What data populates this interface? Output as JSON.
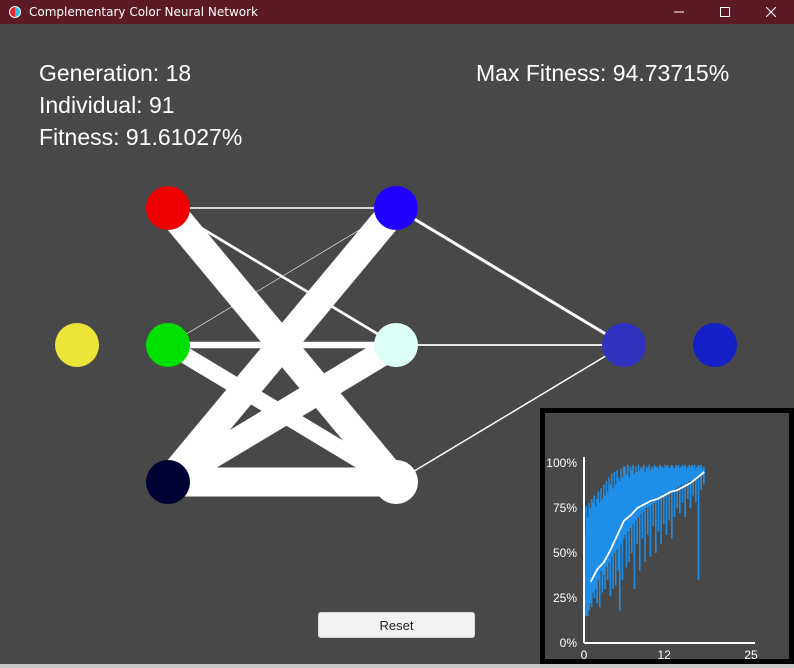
{
  "window": {
    "title": "Complementary Color Neural Network",
    "icon": "color-circle-icon",
    "controls": [
      "minimize-icon",
      "maximize-icon",
      "close-icon"
    ],
    "title_bar_color": "#5c1a25"
  },
  "stats": {
    "generation_label": "Generation: ",
    "generation": "18",
    "individual_label": "Individual: ",
    "individual": "91",
    "fitness_label": "Fitness: ",
    "fitness": "91.61027%",
    "max_fitness_label": "Max Fitness: ",
    "max_fitness": "94.73715%"
  },
  "network": {
    "input_color": "#ede43a",
    "input_nodes": [
      "#ee0000",
      "#00e000",
      "#000033"
    ],
    "hidden_nodes": [
      "#2200ff",
      "#ddfff8",
      "#ffffff"
    ],
    "output_node": "#3232c0",
    "result_color": "#1520c8",
    "input_hidden_weights": [
      [
        0.05,
        0.09,
        0.95
      ],
      [
        0.01,
        0.22,
        0.55
      ],
      [
        0.95,
        0.85,
        0.97
      ]
    ],
    "hidden_output_weights": [
      0.1,
      0.06,
      0.05
    ]
  },
  "reset_button": {
    "label": "Reset"
  },
  "chart_data": {
    "type": "line",
    "title": "",
    "xlabel": "",
    "ylabel": "",
    "x_ticks": [
      "0",
      "12",
      "25"
    ],
    "y_ticks": [
      "0%",
      "25%",
      "50%",
      "75%",
      "100%"
    ],
    "xlim": [
      0,
      25
    ],
    "ylim": [
      0,
      100
    ],
    "grid": false,
    "series": [
      {
        "type": "bar-range",
        "color": "#1e8fe8",
        "x": [
          0.0,
          0.2,
          0.4,
          0.6,
          0.8,
          1.0,
          1.2,
          1.4,
          1.6,
          1.8,
          2.0,
          2.2,
          2.4,
          2.6,
          2.8,
          3.0,
          3.2,
          3.4,
          3.6,
          3.8,
          4.0,
          4.2,
          4.4,
          4.6,
          4.8,
          5.0,
          5.2,
          5.4,
          5.6,
          5.8,
          6.0,
          6.2,
          6.4,
          6.6,
          6.8,
          7.0,
          7.2,
          7.4,
          7.6,
          7.8,
          8.0,
          8.2,
          8.4,
          8.6,
          8.8,
          9.0,
          9.2,
          9.4,
          9.6,
          9.8,
          10.0,
          10.2,
          10.4,
          10.6,
          10.8,
          11.0,
          11.2,
          11.4,
          11.6,
          11.8,
          12.0,
          12.2,
          12.4,
          12.6,
          12.8,
          13.0,
          13.2,
          13.4,
          13.6,
          13.8,
          14.0,
          14.2,
          14.4,
          14.6,
          14.8,
          15.0,
          15.2,
          15.4,
          15.6,
          15.8,
          16.0,
          16.2,
          16.4,
          16.6,
          16.8,
          17.0,
          17.2,
          17.4,
          17.6,
          17.8
        ],
        "low": [
          15,
          15,
          15,
          18,
          22,
          20,
          28,
          25,
          30,
          22,
          35,
          20,
          40,
          28,
          38,
          30,
          42,
          35,
          45,
          26,
          48,
          30,
          50,
          32,
          52,
          40,
          18,
          55,
          35,
          58,
          60,
          42,
          62,
          45,
          64,
          50,
          66,
          30,
          68,
          55,
          70,
          40,
          72,
          58,
          73,
          45,
          75,
          60,
          76,
          48,
          77,
          65,
          78,
          50,
          79,
          62,
          80,
          55,
          81,
          66,
          82,
          60,
          83,
          68,
          84,
          58,
          85,
          70,
          86,
          75,
          87,
          72,
          88,
          78,
          88,
          70,
          89,
          80,
          90,
          75,
          90,
          82,
          91,
          78,
          92,
          35,
          92,
          85,
          93,
          88
        ],
        "high": [
          60,
          76,
          70,
          78,
          75,
          80,
          78,
          82,
          76,
          80,
          84,
          78,
          86,
          80,
          88,
          82,
          90,
          84,
          92,
          88,
          94,
          86,
          95,
          88,
          96,
          92,
          90,
          97,
          92,
          98,
          98,
          94,
          99,
          92,
          98,
          96,
          99,
          94,
          98,
          95,
          99,
          96,
          98,
          97,
          99,
          95,
          98,
          97,
          99,
          96,
          98,
          97,
          99,
          98,
          98,
          97,
          99,
          98,
          98,
          97,
          99,
          98,
          99,
          97,
          98,
          99,
          98,
          97,
          99,
          98,
          99,
          97,
          98,
          99,
          98,
          99,
          97,
          98,
          99,
          98,
          99,
          98,
          99,
          97,
          98,
          99,
          98,
          99,
          97,
          98
        ]
      },
      {
        "type": "line",
        "color": "#ffffff",
        "x": [
          1,
          2,
          3,
          4,
          5,
          6,
          7,
          8,
          9,
          10,
          11,
          12,
          13,
          14,
          15,
          16,
          17,
          18
        ],
        "y": [
          34,
          41,
          45,
          52,
          60,
          68,
          71,
          75,
          77,
          79,
          80,
          82,
          84,
          85,
          87,
          89,
          92,
          95
        ]
      }
    ]
  }
}
